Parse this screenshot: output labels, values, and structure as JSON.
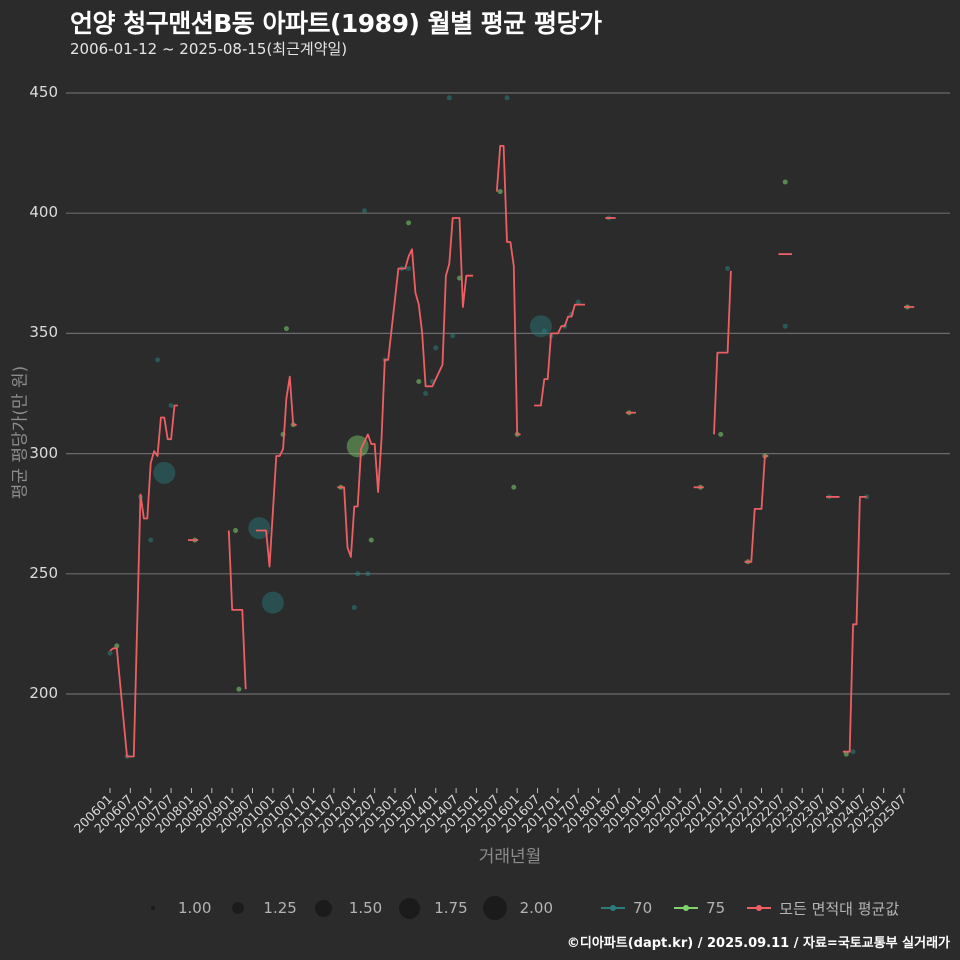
{
  "header": {
    "title": "언양 청구맨션B동 아파트(1989) 월별 평균 평당가",
    "subtitle": "2006-01-12 ~ 2025-08-15(최근계약일)"
  },
  "axes": {
    "ylabel": "평균 평당가(만 원)",
    "xlabel": "거래년월",
    "yticks": [
      "200",
      "250",
      "300",
      "350",
      "400",
      "450"
    ],
    "xticks": [
      "200601",
      "200607",
      "200701",
      "200707",
      "200801",
      "200807",
      "200901",
      "200907",
      "201001",
      "201007",
      "201101",
      "201107",
      "201201",
      "201207",
      "201301",
      "201307",
      "201401",
      "201407",
      "201501",
      "201507",
      "201601",
      "201607",
      "201701",
      "201707",
      "201801",
      "201807",
      "201901",
      "201907",
      "202001",
      "202007",
      "202101",
      "202107",
      "202201",
      "202207",
      "202301",
      "202307",
      "202401",
      "202407",
      "202501",
      "202507"
    ]
  },
  "legend": {
    "size": [
      {
        "label": "1.00",
        "r": 2
      },
      {
        "label": "1.25",
        "r": 6
      },
      {
        "label": "1.50",
        "r": 8.5
      },
      {
        "label": "1.75",
        "r": 10.5
      },
      {
        "label": "2.00",
        "r": 12
      }
    ],
    "series": [
      {
        "label": "70",
        "color": "#2a7d7c"
      },
      {
        "label": "75",
        "color": "#7ed36d"
      },
      {
        "label": "모든 면적대 평균값",
        "color": "#ee5f63"
      }
    ]
  },
  "caption": "©디아파트(dapt.kr) / 2025.09.11 / 자료=국토교통부 실거래가",
  "colors": {
    "background": "#2b2b2c",
    "grid": "#6b6b6b",
    "area70": "#2a7d7c",
    "area75": "#7ed36d",
    "avg": "#ee5f63"
  },
  "chart_data": {
    "type": "line",
    "title": "언양 청구맨션B동 아파트(1989) 월별 평균 평당가",
    "subtitle": "2006-01-12 ~ 2025-08-15(최근계약일)",
    "xlabel": "거래년월",
    "ylabel": "평균 평당가(만 원)",
    "ylim": [
      165,
      455
    ],
    "x_unit": "months since 2006-01",
    "legend_position": "bottom",
    "grid": true,
    "series": [
      {
        "name": "모든 면적대 평균값",
        "type": "line",
        "segments": [
          [
            [
              0,
              218
            ],
            [
              1,
              219
            ],
            [
              2,
              219
            ],
            [
              5,
              174
            ],
            [
              7,
              174
            ],
            [
              9,
              283
            ],
            [
              10,
              273
            ],
            [
              11,
              273
            ],
            [
              12,
              296
            ],
            [
              13,
              301
            ],
            [
              14,
              299
            ],
            [
              15,
              315
            ],
            [
              16,
              315
            ],
            [
              17,
              306
            ],
            [
              18,
              306
            ],
            [
              19,
              320
            ],
            [
              20,
              320
            ]
          ],
          [
            [
              23,
              264
            ],
            [
              26,
              264
            ]
          ],
          [
            [
              35,
              268
            ],
            [
              36,
              235
            ],
            [
              39,
              235
            ],
            [
              40,
              202
            ]
          ],
          [
            [
              43,
              268
            ],
            [
              46,
              268
            ],
            [
              47,
              253
            ],
            [
              49,
              299
            ],
            [
              50,
              299
            ],
            [
              51,
              302
            ],
            [
              52,
              323
            ],
            [
              53,
              332
            ],
            [
              54,
              312
            ],
            [
              55,
              312
            ]
          ],
          [
            [
              67,
              286
            ],
            [
              69,
              286
            ],
            [
              70,
              261
            ],
            [
              71,
              257
            ],
            [
              72,
              278
            ],
            [
              73,
              278
            ],
            [
              74,
              302
            ],
            [
              76,
              308
            ],
            [
              77,
              304
            ],
            [
              78,
              304
            ],
            [
              79,
              284
            ],
            [
              80,
              306
            ],
            [
              81,
              339
            ],
            [
              82,
              339
            ],
            [
              85,
              377
            ],
            [
              87,
              377
            ],
            [
              88,
              382
            ],
            [
              89,
              385
            ],
            [
              90,
              367
            ],
            [
              91,
              362
            ],
            [
              92,
              350
            ],
            [
              93,
              328
            ],
            [
              95,
              328
            ],
            [
              97,
              334
            ],
            [
              98,
              337
            ],
            [
              99,
              374
            ],
            [
              100,
              379
            ],
            [
              101,
              398
            ],
            [
              103,
              398
            ],
            [
              104,
              361
            ],
            [
              105,
              374
            ],
            [
              107,
              374
            ]
          ],
          [
            [
              114,
              409
            ],
            [
              115,
              428
            ],
            [
              116,
              428
            ],
            [
              117,
              388
            ],
            [
              118,
              388
            ],
            [
              119,
              378
            ],
            [
              120,
              308
            ],
            [
              121,
              308
            ]
          ],
          [
            [
              125,
              320
            ],
            [
              127,
              320
            ],
            [
              128,
              331
            ],
            [
              129,
              331
            ],
            [
              130,
              350
            ],
            [
              132,
              350
            ],
            [
              133,
              353
            ],
            [
              134,
              353
            ],
            [
              135,
              357
            ],
            [
              136,
              357
            ],
            [
              137,
              362
            ],
            [
              140,
              362
            ]
          ],
          [
            [
              146,
              398
            ],
            [
              149,
              398
            ]
          ],
          [
            [
              152,
              317
            ],
            [
              155,
              317
            ]
          ],
          [
            [
              172,
              286
            ],
            [
              175,
              286
            ]
          ],
          [
            [
              178,
              308
            ],
            [
              179,
              342
            ],
            [
              182,
              342
            ],
            [
              183,
              376
            ]
          ],
          [
            [
              187,
              255
            ],
            [
              189,
              255
            ],
            [
              190,
              277
            ],
            [
              192,
              277
            ],
            [
              193,
              299
            ],
            [
              194,
              299
            ]
          ],
          [
            [
              197,
              383
            ],
            [
              201,
              383
            ]
          ],
          [
            [
              211,
              282
            ],
            [
              215,
              282
            ]
          ],
          [
            [
              216,
              176
            ],
            [
              218,
              176
            ],
            [
              219,
              229
            ],
            [
              220,
              229
            ],
            [
              221,
              282
            ],
            [
              223,
              282
            ]
          ],
          [
            [
              234,
              361
            ],
            [
              237,
              361
            ]
          ]
        ]
      },
      {
        "name": "70",
        "type": "scatter",
        "points": [
          [
            0,
            217,
            1
          ],
          [
            5,
            174,
            1
          ],
          [
            9,
            282,
            1
          ],
          [
            12,
            264,
            1
          ],
          [
            14,
            339,
            1
          ],
          [
            16,
            292,
            2
          ],
          [
            18,
            320,
            1
          ],
          [
            44,
            269,
            2
          ],
          [
            48,
            238,
            2
          ],
          [
            72,
            236,
            1
          ],
          [
            73,
            250,
            1
          ],
          [
            75,
            401,
            1
          ],
          [
            76,
            250,
            1
          ],
          [
            81,
            339,
            1
          ],
          [
            86,
            377,
            1
          ],
          [
            88,
            377,
            1
          ],
          [
            93,
            325,
            1
          ],
          [
            95,
            330,
            1
          ],
          [
            96,
            344,
            1
          ],
          [
            100,
            448,
            1
          ],
          [
            101,
            349,
            1
          ],
          [
            117,
            448,
            1
          ],
          [
            127,
            353,
            2
          ],
          [
            128,
            351,
            1
          ],
          [
            130,
            349,
            1
          ],
          [
            134,
            353,
            1
          ],
          [
            136,
            358,
            1
          ],
          [
            138,
            363,
            1
          ],
          [
            147,
            398,
            1
          ],
          [
            182,
            377,
            1
          ],
          [
            199,
            353,
            1
          ],
          [
            212,
            282,
            1
          ],
          [
            223,
            282,
            1
          ],
          [
            219,
            176,
            1
          ]
        ]
      },
      {
        "name": "75",
        "type": "scatter",
        "points": [
          [
            2,
            220,
            1
          ],
          [
            25,
            264,
            1
          ],
          [
            37,
            268,
            1
          ],
          [
            38,
            202,
            1
          ],
          [
            51,
            308,
            1
          ],
          [
            52,
            352,
            1
          ],
          [
            54,
            312,
            1
          ],
          [
            68,
            286,
            1
          ],
          [
            73,
            303,
            2
          ],
          [
            77,
            264,
            1
          ],
          [
            88,
            396,
            1
          ],
          [
            91,
            330,
            1
          ],
          [
            103,
            373,
            1
          ],
          [
            115,
            409,
            1
          ],
          [
            119,
            286,
            1
          ],
          [
            120,
            308,
            1
          ],
          [
            153,
            317,
            1
          ],
          [
            174,
            286,
            1
          ],
          [
            180,
            308,
            1
          ],
          [
            188,
            255,
            1
          ],
          [
            193,
            299,
            1
          ],
          [
            199,
            413,
            1
          ],
          [
            217,
            175,
            1
          ],
          [
            235,
            361,
            1
          ]
        ]
      }
    ]
  }
}
